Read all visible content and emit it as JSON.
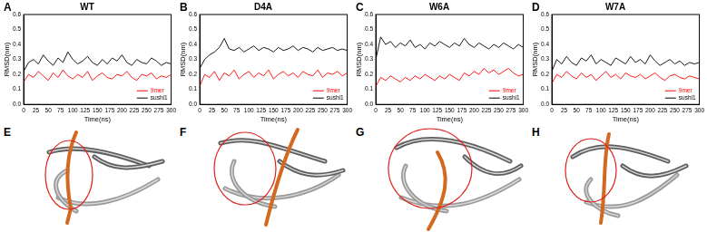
{
  "chart_data": [
    {
      "type": "line",
      "panel_label": "A",
      "title": "WT",
      "x_label": "Time(ns)",
      "y_label": "RMSD(nm)",
      "x": [
        0,
        10,
        20,
        30,
        40,
        50,
        60,
        70,
        80,
        90,
        100,
        110,
        120,
        130,
        140,
        150,
        160,
        170,
        180,
        190,
        200,
        210,
        220,
        230,
        240,
        250,
        260,
        270,
        280,
        290,
        300
      ],
      "series": [
        {
          "name": "9mer",
          "color": "#ff0000",
          "values": [
            0.15,
            0.2,
            0.18,
            0.22,
            0.19,
            0.16,
            0.21,
            0.18,
            0.23,
            0.19,
            0.17,
            0.2,
            0.18,
            0.22,
            0.16,
            0.19,
            0.21,
            0.18,
            0.17,
            0.2,
            0.19,
            0.22,
            0.18,
            0.16,
            0.2,
            0.19,
            0.21,
            0.17,
            0.19,
            0.18,
            0.2
          ]
        },
        {
          "name": "sushi1",
          "color": "#000000",
          "values": [
            0.22,
            0.28,
            0.3,
            0.27,
            0.33,
            0.29,
            0.26,
            0.31,
            0.28,
            0.35,
            0.3,
            0.27,
            0.29,
            0.32,
            0.28,
            0.26,
            0.3,
            0.27,
            0.31,
            0.29,
            0.33,
            0.28,
            0.26,
            0.3,
            0.28,
            0.27,
            0.31,
            0.29,
            0.26,
            0.28,
            0.27
          ]
        }
      ],
      "xlim": [
        0,
        300
      ],
      "xticks": [
        0,
        25,
        50,
        75,
        100,
        125,
        150,
        175,
        200,
        225,
        250,
        275,
        300
      ],
      "ylim": [
        0,
        0.6
      ],
      "yticks": [
        {
          "value": 0,
          "label": "0.0"
        },
        0.1,
        0.2,
        0.3,
        0.4,
        0.5,
        0.6
      ],
      "grid": false,
      "legend": "lower right"
    },
    {
      "type": "line",
      "panel_label": "B",
      "title": "D4A",
      "x_label": "Time(ns)",
      "y_label": "RMSD(nm)",
      "x": [
        0,
        10,
        20,
        30,
        40,
        50,
        60,
        70,
        80,
        90,
        100,
        110,
        120,
        130,
        140,
        150,
        160,
        170,
        180,
        190,
        200,
        210,
        220,
        230,
        240,
        250,
        260,
        270,
        280,
        290,
        300
      ],
      "series": [
        {
          "name": "9mer",
          "color": "#ff0000",
          "values": [
            0.12,
            0.2,
            0.18,
            0.22,
            0.16,
            0.21,
            0.19,
            0.23,
            0.17,
            0.2,
            0.22,
            0.18,
            0.21,
            0.19,
            0.23,
            0.17,
            0.2,
            0.22,
            0.19,
            0.21,
            0.18,
            0.22,
            0.2,
            0.19,
            0.23,
            0.18,
            0.21,
            0.2,
            0.22,
            0.19,
            0.21
          ]
        },
        {
          "name": "sushi1",
          "color": "#000000",
          "values": [
            0.24,
            0.3,
            0.33,
            0.35,
            0.38,
            0.44,
            0.37,
            0.36,
            0.38,
            0.35,
            0.37,
            0.39,
            0.36,
            0.38,
            0.37,
            0.35,
            0.38,
            0.36,
            0.37,
            0.39,
            0.36,
            0.38,
            0.37,
            0.35,
            0.38,
            0.36,
            0.37,
            0.38,
            0.36,
            0.37,
            0.36
          ]
        }
      ],
      "xlim": [
        0,
        300
      ],
      "xticks": [
        0,
        25,
        50,
        75,
        100,
        125,
        150,
        175,
        200,
        225,
        250,
        275,
        300
      ],
      "ylim": [
        0,
        0.6
      ],
      "yticks": [
        {
          "value": 0,
          "label": "0.0"
        },
        0.1,
        0.2,
        0.3,
        0.4,
        0.5,
        0.6
      ],
      "grid": false,
      "legend": "lower right"
    },
    {
      "type": "line",
      "panel_label": "C",
      "title": "W6A",
      "x_label": "Time(ns)",
      "y_label": "RMSD(nm)",
      "x": [
        0,
        10,
        20,
        30,
        40,
        50,
        60,
        70,
        80,
        90,
        100,
        110,
        120,
        130,
        140,
        150,
        160,
        170,
        180,
        190,
        200,
        210,
        220,
        230,
        240,
        250,
        260,
        270,
        280,
        290,
        300
      ],
      "series": [
        {
          "name": "9mer",
          "color": "#ff0000",
          "values": [
            0.12,
            0.18,
            0.16,
            0.19,
            0.17,
            0.15,
            0.18,
            0.16,
            0.19,
            0.17,
            0.2,
            0.18,
            0.16,
            0.19,
            0.17,
            0.2,
            0.18,
            0.16,
            0.21,
            0.19,
            0.22,
            0.2,
            0.24,
            0.21,
            0.23,
            0.2,
            0.22,
            0.24,
            0.21,
            0.19,
            0.2
          ]
        },
        {
          "name": "sushi1",
          "color": "#000000",
          "values": [
            0.3,
            0.45,
            0.4,
            0.42,
            0.38,
            0.41,
            0.39,
            0.43,
            0.38,
            0.4,
            0.37,
            0.41,
            0.39,
            0.42,
            0.4,
            0.38,
            0.41,
            0.39,
            0.44,
            0.4,
            0.38,
            0.41,
            0.39,
            0.37,
            0.4,
            0.38,
            0.41,
            0.39,
            0.37,
            0.4,
            0.38
          ]
        }
      ],
      "xlim": [
        0,
        300
      ],
      "xticks": [
        0,
        25,
        50,
        75,
        100,
        125,
        150,
        175,
        200,
        225,
        250,
        275,
        300
      ],
      "ylim": [
        0,
        0.6
      ],
      "yticks": [
        {
          "value": 0,
          "label": "0.0"
        },
        0.1,
        0.2,
        0.3,
        0.4,
        0.5,
        0.6
      ],
      "grid": false,
      "legend": "lower right"
    },
    {
      "type": "line",
      "panel_label": "D",
      "title": "W7A",
      "x_label": "Time(ns)",
      "y_label": "RMSD(nm)",
      "x": [
        0,
        10,
        20,
        30,
        40,
        50,
        60,
        70,
        80,
        90,
        100,
        110,
        120,
        130,
        140,
        150,
        160,
        170,
        180,
        190,
        200,
        210,
        220,
        230,
        240,
        250,
        260,
        270,
        280,
        290,
        300
      ],
      "series": [
        {
          "name": "9mer",
          "color": "#ff0000",
          "values": [
            0.14,
            0.2,
            0.18,
            0.22,
            0.19,
            0.17,
            0.21,
            0.18,
            0.2,
            0.16,
            0.19,
            0.22,
            0.18,
            0.2,
            0.17,
            0.21,
            0.19,
            0.18,
            0.2,
            0.17,
            0.19,
            0.21,
            0.18,
            0.16,
            0.19,
            0.2,
            0.18,
            0.17,
            0.19,
            0.18,
            0.17
          ]
        },
        {
          "name": "sushi1",
          "color": "#000000",
          "values": [
            0.22,
            0.3,
            0.27,
            0.32,
            0.28,
            0.26,
            0.31,
            0.29,
            0.33,
            0.27,
            0.3,
            0.28,
            0.26,
            0.31,
            0.29,
            0.27,
            0.32,
            0.28,
            0.3,
            0.27,
            0.33,
            0.29,
            0.26,
            0.28,
            0.3,
            0.27,
            0.29,
            0.26,
            0.28,
            0.27,
            0.28
          ]
        }
      ],
      "xlim": [
        0,
        300
      ],
      "xticks": [
        0,
        25,
        50,
        75,
        100,
        125,
        150,
        175,
        200,
        225,
        250,
        275,
        300
      ],
      "ylim": [
        0,
        0.6
      ],
      "yticks": [
        {
          "value": 0,
          "label": "0.0"
        },
        0.1,
        0.2,
        0.3,
        0.4,
        0.5,
        0.6
      ],
      "grid": false,
      "legend": "lower right"
    }
  ],
  "structure_panels": [
    {
      "label": "E"
    },
    {
      "label": "F"
    },
    {
      "label": "G"
    },
    {
      "label": "H"
    }
  ]
}
